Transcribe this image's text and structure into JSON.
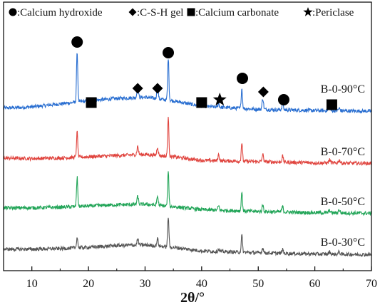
{
  "chart_data": {
    "type": "line",
    "title": "",
    "xlabel": "2θ/°",
    "ylabel": "",
    "xlim": [
      5,
      70
    ],
    "xticks": [
      10,
      20,
      30,
      40,
      50,
      60,
      70
    ],
    "x_tick_labels": [
      "10",
      "20",
      "30",
      "40",
      "50",
      "60",
      "70"
    ],
    "grid": false,
    "legend": {
      "position": "top",
      "items": [
        {
          "symbol": "circle",
          "label": ":Calcium hydroxide"
        },
        {
          "symbol": "diamond",
          "label": ":C-S-H gel"
        },
        {
          "symbol": "square",
          "label": ":Calcium carbonate"
        },
        {
          "symbol": "star",
          "label": ":Periclase"
        }
      ]
    },
    "baseline": 0,
    "peaks": [
      {
        "x": 18.0,
        "w": 0.22
      },
      {
        "x": 28.7,
        "w": 0.25
      },
      {
        "x": 32.2,
        "w": 0.25
      },
      {
        "x": 34.1,
        "w": 0.22
      },
      {
        "x": 43.0,
        "w": 0.25
      },
      {
        "x": 47.1,
        "w": 0.22
      },
      {
        "x": 50.8,
        "w": 0.25
      },
      {
        "x": 54.3,
        "w": 0.25
      },
      {
        "x": 62.6,
        "w": 0.3
      },
      {
        "x": 64.3,
        "w": 0.3
      }
    ],
    "series": [
      {
        "name": "B-0-90°C",
        "color": "#2a6fd1",
        "offset": 3,
        "background": [
          [
            5,
            12
          ],
          [
            10,
            14
          ],
          [
            15,
            19
          ],
          [
            20,
            24
          ],
          [
            25,
            28
          ],
          [
            30,
            30
          ],
          [
            35,
            24
          ],
          [
            40,
            15
          ],
          [
            50,
            10
          ],
          [
            60,
            8
          ],
          [
            70,
            7
          ]
        ],
        "peak_heights": [
          83,
          18,
          22,
          70,
          6,
          33,
          18,
          10,
          4,
          4
        ]
      },
      {
        "name": "B-0-70°C",
        "color": "#e0453f",
        "offset": 2,
        "background": [
          [
            5,
            12
          ],
          [
            10,
            11
          ],
          [
            15,
            12
          ],
          [
            20,
            14
          ],
          [
            25,
            16
          ],
          [
            30,
            18
          ],
          [
            35,
            14
          ],
          [
            40,
            8
          ],
          [
            50,
            6
          ],
          [
            60,
            4
          ],
          [
            70,
            3
          ]
        ],
        "peak_heights": [
          42,
          14,
          14,
          63,
          10,
          31,
          12,
          10,
          5,
          5
        ]
      },
      {
        "name": "B-0-50°C",
        "color": "#22a558",
        "offset": 1,
        "background": [
          [
            5,
            12
          ],
          [
            10,
            12
          ],
          [
            15,
            13
          ],
          [
            20,
            15
          ],
          [
            25,
            17
          ],
          [
            30,
            18
          ],
          [
            35,
            14
          ],
          [
            40,
            9
          ],
          [
            50,
            6
          ],
          [
            60,
            4
          ],
          [
            70,
            3
          ]
        ],
        "peak_heights": [
          48,
          13,
          15,
          56,
          7,
          31,
          11,
          9,
          4,
          5
        ]
      },
      {
        "name": "B-0-30°C",
        "color": "#555555",
        "offset": 0,
        "background": [
          [
            5,
            12
          ],
          [
            10,
            12
          ],
          [
            15,
            13
          ],
          [
            20,
            15
          ],
          [
            25,
            18
          ],
          [
            30,
            19
          ],
          [
            35,
            15
          ],
          [
            40,
            9
          ],
          [
            50,
            6
          ],
          [
            60,
            4
          ],
          [
            70,
            3
          ]
        ],
        "peak_heights": [
          18,
          10,
          12,
          50,
          4,
          28,
          9,
          6,
          4,
          4
        ]
      }
    ],
    "markers": [
      {
        "symbol": "circle",
        "x": 18.0
      },
      {
        "symbol": "square",
        "x": 20.5
      },
      {
        "symbol": "diamond",
        "x": 28.7
      },
      {
        "symbol": "diamond",
        "x": 32.2
      },
      {
        "symbol": "circle",
        "x": 34.1
      },
      {
        "symbol": "square",
        "x": 40.0
      },
      {
        "symbol": "star",
        "x": 43.2
      },
      {
        "symbol": "circle",
        "x": 47.2
      },
      {
        "symbol": "diamond",
        "x": 50.9
      },
      {
        "symbol": "circle",
        "x": 54.5
      },
      {
        "symbol": "square",
        "x": 63.0
      }
    ]
  }
}
